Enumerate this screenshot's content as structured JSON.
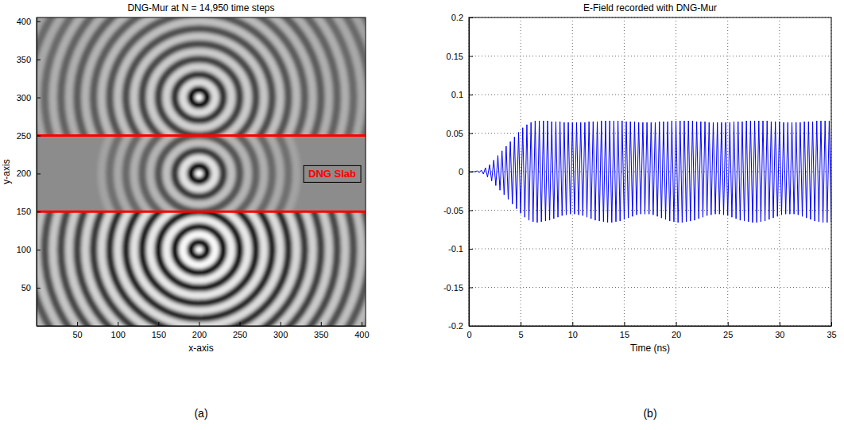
{
  "chart_data": [
    {
      "type": "field",
      "title": "DNG-Mur at N = 14,950 time steps",
      "xlabel": "x-axis",
      "ylabel": "y-axis",
      "caption": "(a)",
      "xlim": [
        0,
        405
      ],
      "ylim": [
        0,
        405
      ],
      "xticks": [
        50,
        100,
        150,
        200,
        250,
        300,
        350,
        400
      ],
      "yticks": [
        50,
        100,
        150,
        200,
        250,
        300,
        350,
        400
      ],
      "level_lim": [
        -1,
        1
      ],
      "slab": {
        "label": "DNG Slab",
        "bounds": [
          150,
          250
        ],
        "color": "#ff0000"
      },
      "sources": [
        {
          "x": 200,
          "y": 100,
          "radii": [
            0,
            10,
            20,
            30,
            40,
            50,
            60,
            70,
            80,
            90,
            100,
            110,
            120,
            130,
            140,
            150,
            160,
            170,
            180,
            190,
            200,
            210,
            220
          ],
          "levels": [
            1,
            -1,
            0.95,
            -0.9,
            0.85,
            -0.85,
            0.8,
            -0.8,
            0.75,
            -0.75,
            0.7,
            -0.7,
            0.65,
            -0.6,
            0.6,
            -0.55,
            0.55,
            -0.5,
            0.5,
            -0.45,
            0.45,
            -0.4,
            0.4
          ]
        },
        {
          "x": 200,
          "y": 200,
          "radii": [
            0,
            10,
            20,
            30,
            40,
            50,
            60,
            70,
            80,
            90,
            100,
            110,
            120
          ],
          "levels": [
            1,
            -1,
            0.75,
            -0.6,
            0.45,
            -0.4,
            0.35,
            -0.3,
            0.3,
            -0.25,
            0.25,
            -0.2,
            0.2
          ]
        },
        {
          "x": 200,
          "y": 300,
          "radii": [
            0,
            10,
            20,
            30,
            40,
            50,
            60,
            70,
            80,
            90,
            100,
            110,
            120,
            130,
            140,
            150,
            160,
            170,
            180,
            190,
            200,
            210,
            220,
            230
          ],
          "levels": [
            1,
            -1,
            0.7,
            -0.65,
            0.6,
            -0.55,
            0.55,
            -0.5,
            0.5,
            -0.45,
            0.45,
            -0.4,
            0.4,
            -0.35,
            0.35,
            -0.35,
            0.3,
            -0.3,
            0.3,
            -0.25,
            0.25,
            -0.25,
            0.2,
            -0.2
          ]
        }
      ]
    },
    {
      "type": "line",
      "title": "E-Field recorded with DNG-Mur",
      "xlabel": "Time (ns)",
      "caption": "(b)",
      "xlim": [
        0,
        35
      ],
      "ylim": [
        -0.2,
        0.2
      ],
      "xticks": [
        0,
        5,
        10,
        15,
        20,
        25,
        30,
        35
      ],
      "yticks": [
        -0.2,
        -0.15,
        -0.1,
        -0.05,
        0,
        0.05,
        0.1,
        0.15,
        0.2
      ],
      "grid": true,
      "color": "#0000ff",
      "x": [
        0,
        0.2,
        0.4,
        0.6,
        0.8,
        1,
        1.2,
        1.4,
        1.6,
        1.8,
        2,
        2.2,
        2.4,
        2.6,
        2.8,
        3,
        3.2,
        3.4,
        3.6,
        3.8,
        4,
        4.2,
        4.4,
        4.6,
        4.8,
        5,
        5.2,
        5.4,
        5.6,
        5.8,
        6,
        6.2,
        6.4,
        6.6,
        6.8,
        7,
        7.2,
        7.4,
        7.6,
        7.8,
        8,
        8.2,
        8.4,
        8.6,
        8.8,
        9,
        9.2,
        9.4,
        9.6,
        9.8,
        10,
        10.2,
        10.4,
        10.6,
        10.8,
        11,
        11.2,
        11.4,
        11.6,
        11.8,
        12,
        12.2,
        12.4,
        12.6,
        12.8,
        13,
        13.2,
        13.4,
        13.6,
        13.8,
        14,
        14.2,
        14.4,
        14.6,
        14.8,
        15,
        15.2,
        15.4,
        15.6,
        15.8,
        16,
        16.2,
        16.4,
        16.6,
        16.8,
        17,
        17.2,
        17.4,
        17.6,
        17.8,
        18,
        18.2,
        18.4,
        18.6,
        18.8,
        19,
        19.2,
        19.4,
        19.6,
        19.8,
        20,
        20.2,
        20.4,
        20.6,
        20.8,
        21,
        21.2,
        21.4,
        21.6,
        21.8,
        22,
        22.2,
        22.4,
        22.6,
        22.8,
        23,
        23.2,
        23.4,
        23.6,
        23.8,
        24,
        24.2,
        24.4,
        24.6,
        24.8,
        25,
        25.2,
        25.4,
        25.6,
        25.8,
        26,
        26.2,
        26.4,
        26.6,
        26.8,
        27,
        27.2,
        27.4,
        27.6,
        27.8,
        28,
        28.2,
        28.4,
        28.6,
        28.8,
        29,
        29.2,
        29.4,
        29.6,
        29.8,
        30,
        30.2,
        30.4,
        30.6,
        30.8,
        31,
        31.2,
        31.4,
        31.6,
        31.8,
        32,
        32.2,
        32.4,
        32.6,
        32.8,
        33,
        33.2,
        33.4,
        33.6,
        33.8,
        34,
        34.2,
        34.4,
        34.6,
        34.8,
        35
      ],
      "values": [
        0,
        0,
        0,
        0,
        0.001,
        -0.001,
        0.002,
        -0.003,
        0.005,
        -0.007,
        0.009,
        -0.012,
        0.015,
        -0.018,
        0.021,
        -0.024,
        0.027,
        -0.03,
        0.033,
        -0.036,
        0.039,
        -0.042,
        0.045,
        -0.048,
        0.051,
        -0.054,
        0.057,
        -0.059,
        0.061,
        -0.063,
        0.064,
        -0.065,
        0.066,
        -0.066,
        0.066,
        -0.065,
        0.066,
        -0.064,
        0.066,
        -0.063,
        0.065,
        -0.061,
        0.065,
        -0.059,
        0.065,
        -0.057,
        0.064,
        -0.056,
        0.064,
        -0.055,
        0.064,
        -0.055,
        0.064,
        -0.056,
        0.064,
        -0.057,
        0.064,
        -0.059,
        0.065,
        -0.061,
        0.065,
        -0.063,
        0.065,
        -0.064,
        0.066,
        -0.065,
        0.066,
        -0.066,
        0.066,
        -0.066,
        0.066,
        -0.065,
        0.066,
        -0.064,
        0.066,
        -0.062,
        0.065,
        -0.06,
        0.065,
        -0.058,
        0.065,
        -0.056,
        0.064,
        -0.055,
        0.064,
        -0.055,
        0.064,
        -0.055,
        0.064,
        -0.056,
        0.064,
        -0.058,
        0.065,
        -0.06,
        0.065,
        -0.062,
        0.065,
        -0.064,
        0.066,
        -0.065,
        0.066,
        -0.066,
        0.066,
        -0.066,
        0.066,
        -0.065,
        0.066,
        -0.064,
        0.066,
        -0.063,
        0.065,
        -0.061,
        0.065,
        -0.059,
        0.065,
        -0.057,
        0.064,
        -0.056,
        0.064,
        -0.055,
        0.064,
        -0.055,
        0.064,
        -0.056,
        0.064,
        -0.057,
        0.064,
        -0.059,
        0.065,
        -0.061,
        0.065,
        -0.063,
        0.065,
        -0.064,
        0.066,
        -0.065,
        0.066,
        -0.066,
        0.066,
        -0.066,
        0.066,
        -0.065,
        0.066,
        -0.064,
        0.066,
        -0.062,
        0.065,
        -0.06,
        0.065,
        -0.058,
        0.065,
        -0.056,
        0.064,
        -0.055,
        0.064,
        -0.055,
        0.064,
        -0.055,
        0.064,
        -0.056,
        0.064,
        -0.058,
        0.065,
        -0.06,
        0.065,
        -0.062,
        0.065,
        -0.064,
        0.066,
        -0.065,
        0.066,
        -0.066,
        0.066,
        -0.066,
        0.066,
        -0.065
      ]
    }
  ]
}
